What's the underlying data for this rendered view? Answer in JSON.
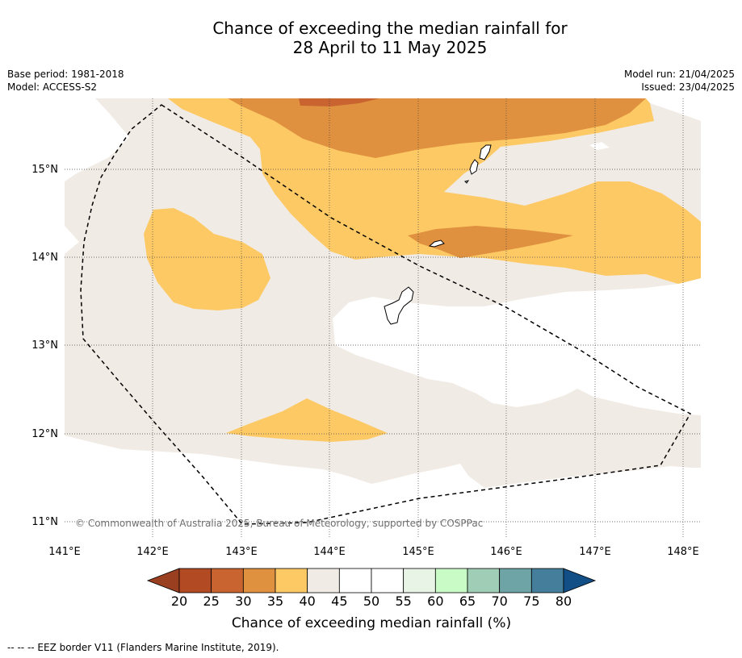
{
  "title": {
    "line1": "Chance of exceeding the median rainfall for",
    "line2": "28 April to 11 May 2025"
  },
  "meta": {
    "base_period": "Base period: 1981-2018",
    "model": "Model: ACCESS-S2",
    "model_run": "Model run: 21/04/2025",
    "issued": "Issued: 23/04/2025"
  },
  "map": {
    "lon_ticks": [
      "141°E",
      "142°E",
      "143°E",
      "144°E",
      "145°E",
      "146°E",
      "147°E",
      "148°E"
    ],
    "lat_ticks": [
      "15°N",
      "14°N",
      "13°N",
      "12°N",
      "11°N"
    ],
    "extent": {
      "lon": [
        141,
        148.2
      ],
      "lat": [
        10.8,
        15.8
      ]
    },
    "copyright": "© Commonwealth of Australia 2025, Bureau of Meteorology, supported by COSPPac",
    "gridlines": true
  },
  "colorbar": {
    "title": "Chance of exceeding median rainfall (%)",
    "ticks": [
      "20",
      "25",
      "30",
      "35",
      "40",
      "45",
      "50",
      "55",
      "60",
      "65",
      "70",
      "75",
      "80"
    ],
    "colors": {
      "under": "#9a3f20",
      "bins": [
        "#b24a24",
        "#c96431",
        "#e0913f",
        "#fdc964",
        "#f1ebe5",
        "#ffffff",
        "#ffffff",
        "#e8f5e6",
        "#c8fbc6",
        "#9fcdb5",
        "#6fa4a6",
        "#457e9b"
      ],
      "over": "#124f86"
    }
  },
  "footer": {
    "legend": "--  --  -- EEZ border V11 (Flanders Marine Institute, 2019)."
  }
}
